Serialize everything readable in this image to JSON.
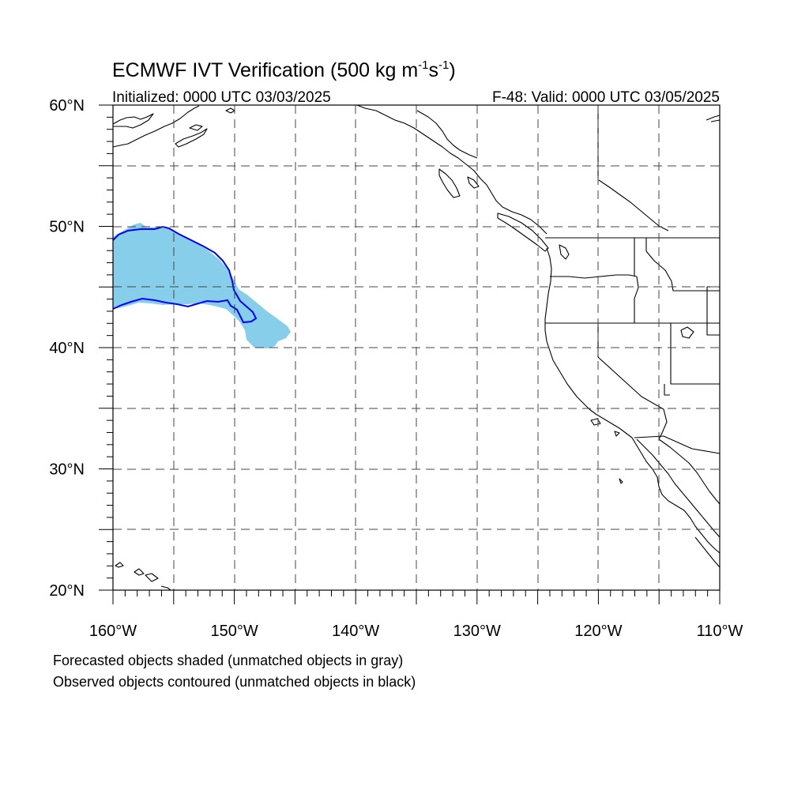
{
  "title": {
    "main": "ECMWF IVT Verification (500 kg m",
    "exp1": "-1",
    "mid": "s",
    "exp2": "-1",
    "end": ")"
  },
  "subtitle_left": "Initialized: 0000 UTC 03/03/2025",
  "subtitle_right": "F-48: Valid: 0000 UTC 03/05/2025",
  "map": {
    "lon_range": [
      -160,
      -110
    ],
    "lat_range": [
      20,
      60
    ],
    "lat_labels": [
      {
        "lat": 60,
        "text": "60°N"
      },
      {
        "lat": 50,
        "text": "50°N"
      },
      {
        "lat": 40,
        "text": "40°N"
      },
      {
        "lat": 30,
        "text": "30°N"
      },
      {
        "lat": 20,
        "text": "20°N"
      }
    ],
    "lon_labels": [
      {
        "lon": -160,
        "text": "160°W"
      },
      {
        "lon": -150,
        "text": "150°W"
      },
      {
        "lon": -140,
        "text": "140°W"
      },
      {
        "lon": -130,
        "text": "130°W"
      },
      {
        "lon": -120,
        "text": "120°W"
      },
      {
        "lon": -110,
        "text": "110°W"
      }
    ],
    "gridlines": "dashed every 5°",
    "forecast_object_color": "#87ceeb",
    "observed_contour_color": "#0000ff",
    "coastline_color": "#000000"
  },
  "legend_notes": [
    "Forecasted objects shaded (unmatched objects in gray)",
    "Observed objects contoured (unmatched objects in black)"
  ]
}
